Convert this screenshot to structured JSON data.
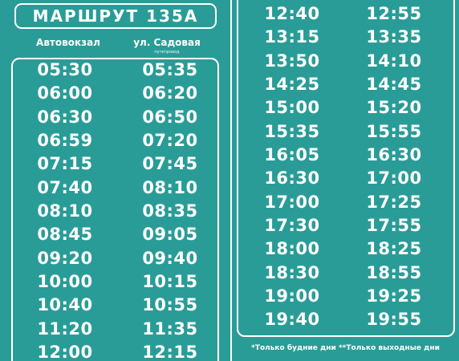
{
  "route_title": "МАРШРУТ 135А",
  "stops": {
    "first": "Автовокзал",
    "second": "ул. Садовая",
    "second_note": "путепровод"
  },
  "left_panel": {
    "autovokzal_times": [
      "05:30",
      "06:00",
      "06:30",
      "06:59",
      "07:15",
      "07:40",
      "08:10",
      "08:45",
      "09:20",
      "10:00",
      "10:40",
      "11:20",
      "12:00"
    ],
    "sadovaya_times": [
      "05:35",
      "06:20",
      "06:50",
      "07:20",
      "07:45",
      "08:10",
      "08:35",
      "09:05",
      "09:40",
      "10:15",
      "10:55",
      "11:35",
      "12:15"
    ]
  },
  "right_panel": {
    "autovokzal_times": [
      "12:40",
      "13:15",
      "13:50",
      "14:25",
      "15:00",
      "15:35",
      "16:05",
      "16:30",
      "17:00",
      "17:30",
      "18:00",
      "18:30",
      "19:00",
      "19:40"
    ],
    "sadovaya_times": [
      "12:55",
      "13:35",
      "14:10",
      "14:45",
      "15:20",
      "15:55",
      "16:30",
      "17:00",
      "17:25",
      "17:55",
      "18:25",
      "18:55",
      "19:25",
      "19:55"
    ]
  },
  "footnote": "*Только будние дни **Только выходные дни",
  "colors": {
    "background": "#2a9c97",
    "text": "#ffffff"
  }
}
